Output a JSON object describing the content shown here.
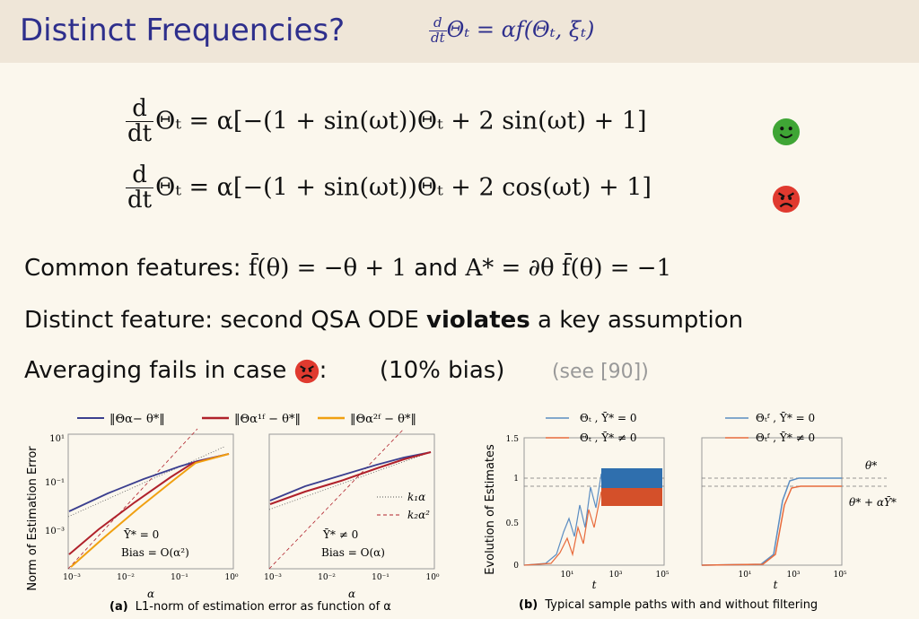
{
  "header": {
    "title": "Distinct Frequencies?",
    "eq_lhs_num": "d",
    "eq_lhs_den": "dt",
    "eq_rhs": "Θₜ = αf(Θₜ, ξₜ)"
  },
  "equations": [
    {
      "num": "d",
      "den": "dt",
      "rhs": "Θₜ = α[−(1 + sin(ωt))Θₜ + 2 sin(ωt) + 1]",
      "face": "happy-face-icon",
      "face_color": "#3fa535"
    },
    {
      "num": "d",
      "den": "dt",
      "rhs": "Θₜ = α[−(1 + sin(ωt))Θₜ + 2 cos(ωt) + 1]",
      "face": "angry-face-icon",
      "face_color": "#e03a2f"
    }
  ],
  "common": {
    "label": "Common features:",
    "m1": "f̄(θ) = −θ + 1",
    "and": "and",
    "m2": "A* = ∂θ f̄(θ) = −1"
  },
  "distinct": {
    "pre": "Distinct feature: second QSA ODE",
    "bold": "violates",
    "post": "a key assumption"
  },
  "averaging": {
    "pre": "Averaging fails in case",
    "colon": ":",
    "bias": "(10% bias)",
    "see": "(see [90])"
  },
  "fig_a": {
    "legend": [
      "‖Θα− θ*‖",
      "‖Θα¹ᶠ − θ*‖",
      "‖Θα²ᶠ − θ*‖"
    ],
    "ylabel": "Norm of Estimation Error",
    "xlabel": "α",
    "yticks": [
      "10¹",
      "10⁻¹",
      "10⁻³"
    ],
    "xticks": [
      "10⁻³",
      "10⁻²",
      "10⁻¹",
      "10⁰"
    ],
    "left_note1": "Ȳ* = 0",
    "left_note2": "Bias = O(α²)",
    "right_note1": "Ȳ* ≠ 0",
    "right_note2": "Bias = O(α)",
    "k1": "k₁α",
    "k2": "k₂α²",
    "caption_label": "(a)",
    "caption": "L1-norm of estimation error as function of α"
  },
  "fig_b": {
    "legend_left": [
      "Θₜ ,  Ȳ* = 0",
      "Θₜ ,  Ȳ* ≠ 0"
    ],
    "legend_right": [
      "Θₜᶠ ,  Ȳ* = 0",
      "Θₜᶠ ,  Ȳ* ≠ 0"
    ],
    "ylabel": "Evolution of Estimates",
    "xlabel": "t",
    "yticks": [
      "1.5",
      "1",
      "0.5",
      "0"
    ],
    "xticks": [
      "10¹",
      "10³",
      "10⁵"
    ],
    "theta_star": "θ*",
    "theta_bias": "θ* + αȲ*",
    "caption_label": "(b)",
    "caption": "Typical sample paths with and without filtering"
  },
  "colors": {
    "title": "#2e2f8c",
    "blue": "#3b3f8f",
    "red": "#b0212b",
    "orange": "#f0a010",
    "lblue": "#5b8dc2",
    "lorange": "#e86b3c",
    "fill_blue": "#2f6fae",
    "fill_orange": "#d4502a"
  }
}
